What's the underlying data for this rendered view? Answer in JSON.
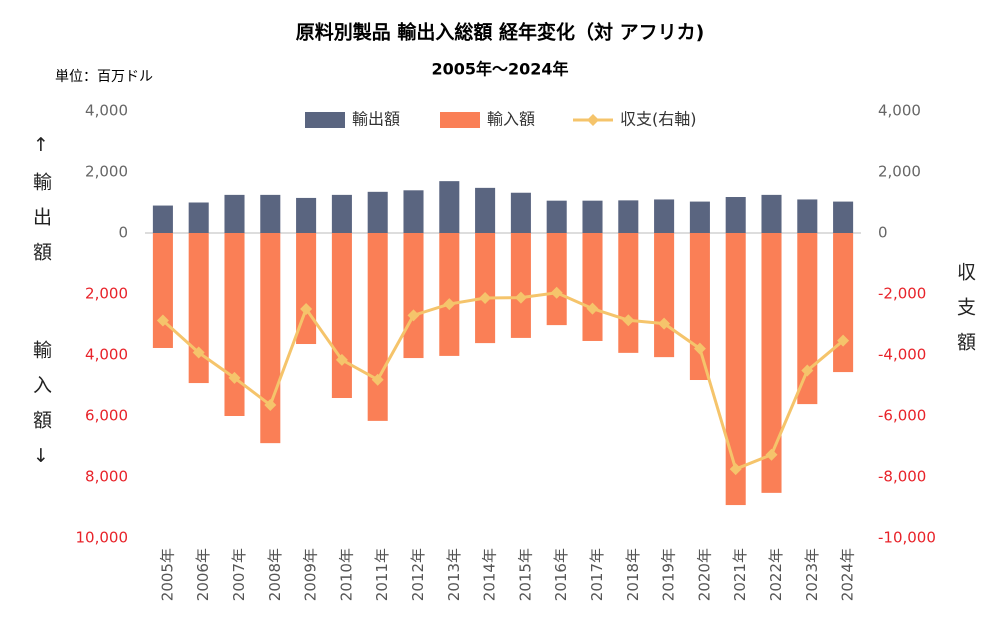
{
  "chart_data": {
    "type": "bar",
    "title": "原料別製品 輸出入総額 経年変化（対 アフリカ)",
    "subtitle": "2005年～2024年",
    "unit_label": "単位：百万ドル",
    "ylabel_top": "↑輸出額",
    "ylabel_bottom": "輸入額↓",
    "y2label": "収支額",
    "categories": [
      "2005年",
      "2006年",
      "2007年",
      "2008年",
      "2009年",
      "2010年",
      "2011年",
      "2012年",
      "2013年",
      "2014年",
      "2015年",
      "2016年",
      "2017年",
      "2018年",
      "2019年",
      "2020年",
      "2021年",
      "2022年",
      "2023年",
      "2024年"
    ],
    "series": [
      {
        "name": "輸出額",
        "color": "#5a6580",
        "values": [
          900,
          1000,
          1250,
          1250,
          1150,
          1250,
          1350,
          1400,
          1700,
          1480,
          1320,
          1060,
          1060,
          1070,
          1100,
          1030,
          1180,
          1250,
          1100,
          1030
        ]
      },
      {
        "name": "輸入額",
        "color": "#fa7f56",
        "values": [
          -3770,
          -4920,
          -6000,
          -6890,
          -3640,
          -5410,
          -6160,
          -4100,
          -4030,
          -3610,
          -3440,
          -3020,
          -3540,
          -3930,
          -4070,
          -4820,
          -8920,
          -8520,
          -5610,
          -4560
        ]
      },
      {
        "name": "収支(右軸)",
        "color": "#f5c46b",
        "type": "line",
        "axis": "y2",
        "values": [
          -2870,
          -3920,
          -4750,
          -5640,
          -2490,
          -4160,
          -4810,
          -2700,
          -2330,
          -2130,
          -2120,
          -1960,
          -2480,
          -2860,
          -2970,
          -3790,
          -7740,
          -7270,
          -4510,
          -3530
        ]
      }
    ],
    "ylim": [
      -10000,
      4000
    ],
    "yticks": [
      {
        "value": 4000,
        "label": "4,000"
      },
      {
        "value": 2000,
        "label": "2,000"
      },
      0,
      {
        "value": -2000,
        "label": "2,000"
      },
      {
        "value": -4000,
        "label": "4,000"
      },
      {
        "value": -6000,
        "label": "6,000"
      },
      {
        "value": -8000,
        "label": "8,000"
      },
      {
        "value": -10000,
        "label": "10,000"
      }
    ],
    "y2lim": [
      -10000,
      4000
    ],
    "y2ticks": [
      {
        "value": 4000,
        "label": "4,000"
      },
      {
        "value": 2000,
        "label": "2,000"
      },
      0,
      {
        "value": -2000,
        "label": "-2,000"
      },
      {
        "value": -4000,
        "label": "-4,000"
      },
      {
        "value": -6000,
        "label": "-6,000"
      },
      {
        "value": -8000,
        "label": "-8,000"
      },
      {
        "value": -10000,
        "label": "-10,000"
      }
    ],
    "negative_tick_color": "#e8232a",
    "legend": "top"
  }
}
